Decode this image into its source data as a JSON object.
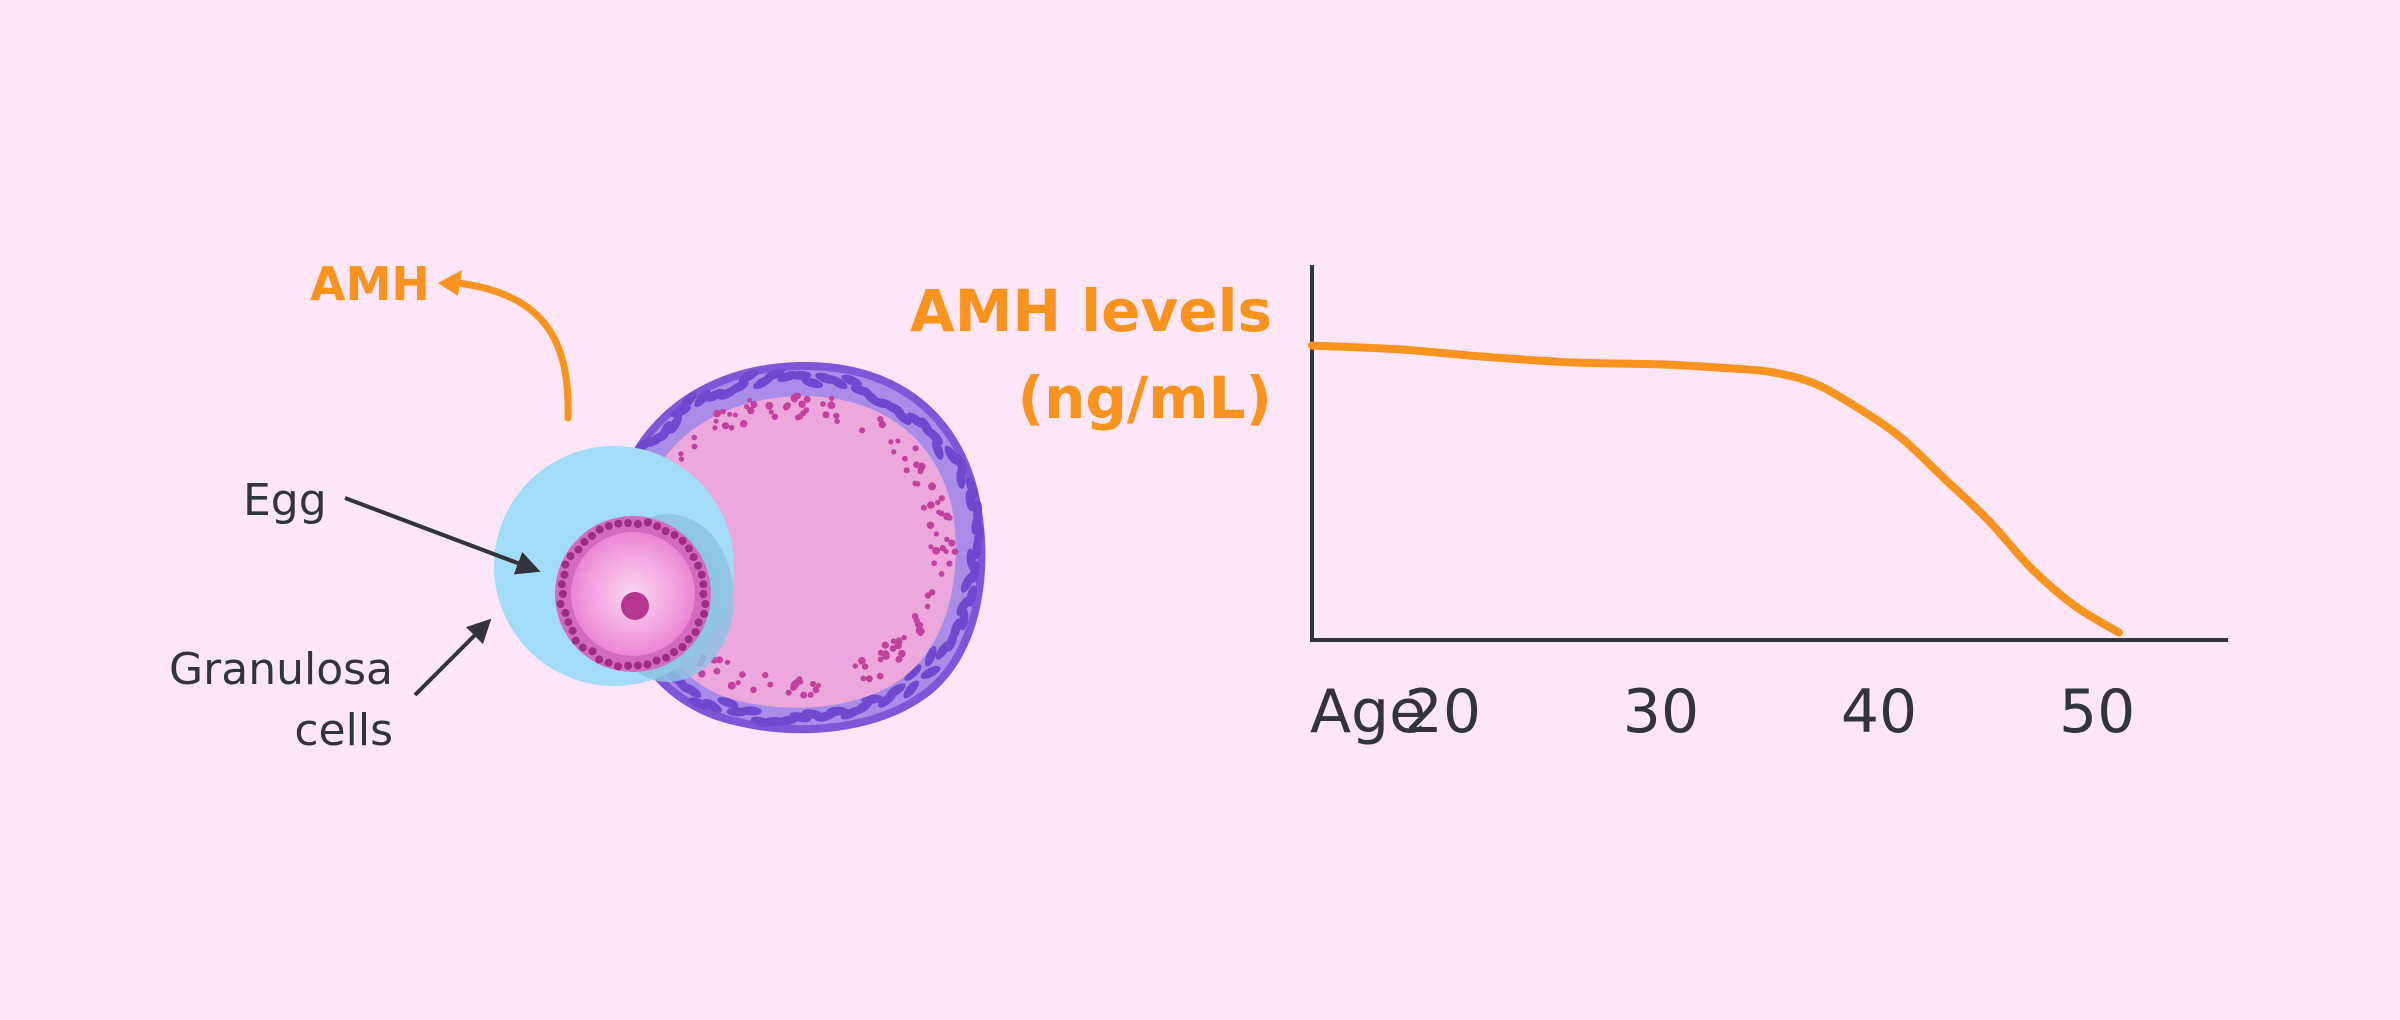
{
  "colors": {
    "background": "#fde6f8",
    "accent_orange": "#f7931e",
    "text_dark": "#33333b",
    "theca_purple": "#8a63e0",
    "granulosa_pink": "#e89bd6",
    "antrum_blue": "#a3dcf6",
    "oocyte_pink": "#f4a8e2",
    "nucleus_magenta": "#b6358f"
  },
  "diagram": {
    "amh_label": "AMH",
    "egg_label": "Egg",
    "granulosa_label_line1": "Granulosa",
    "granulosa_label_line2": "cells",
    "icons": [
      "follicle-illustration",
      "curved-arrow-icon",
      "pointer-arrow-icon"
    ]
  },
  "chart_data": {
    "type": "line",
    "ylabel_line1": "AMH levels",
    "ylabel_line2": "(ng/mL)",
    "xlabel": "Age",
    "x_ticks": [
      20,
      30,
      40,
      50
    ],
    "xlim": [
      14,
      56
    ],
    "ylim": [
      0,
      1
    ],
    "y_ticks": [],
    "grid": false,
    "series": [
      {
        "x": [
          14,
          18,
          22,
          26,
          30,
          33,
          35,
          37,
          39,
          41,
          43,
          45,
          47,
          49,
          51
        ],
        "y": [
          0.785,
          0.775,
          0.755,
          0.74,
          0.735,
          0.725,
          0.715,
          0.685,
          0.62,
          0.54,
          0.43,
          0.32,
          0.19,
          0.09,
          0.02
        ]
      }
    ]
  }
}
